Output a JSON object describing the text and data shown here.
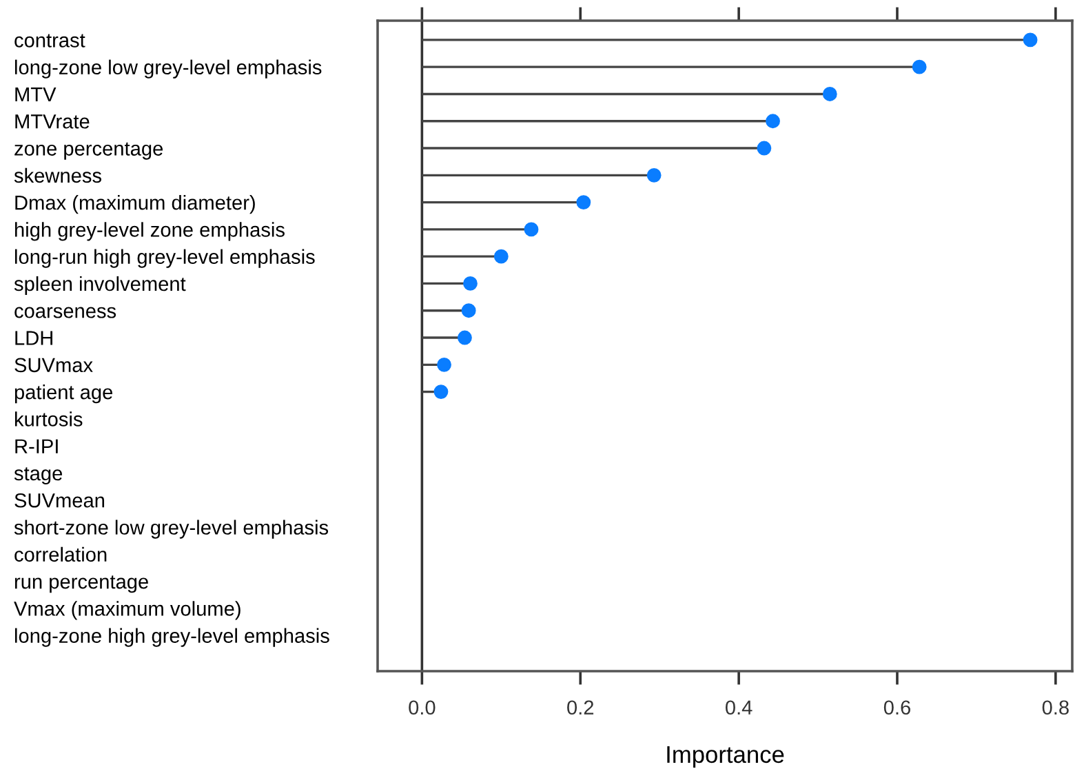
{
  "chart_data": {
    "type": "lollipop",
    "orientation": "horizontal",
    "xlabel": "Importance",
    "categories": [
      "contrast",
      "long-zone low grey-level emphasis",
      "MTV",
      "MTVrate",
      "zone percentage",
      "skewness",
      "Dmax (maximum diameter)",
      "high grey-level zone emphasis",
      "long-run high grey-level emphasis",
      "spleen involvement",
      "coarseness",
      "LDH",
      "SUVmax",
      "patient age",
      "kurtosis",
      "R-IPI",
      "stage",
      "SUVmean",
      "short-zone low grey-level emphasis",
      "correlation",
      "run percentage",
      "Vmax (maximum volume)",
      "long-zone high grey-level emphasis"
    ],
    "series": [
      {
        "color": "#0a7dff",
        "values": [
          0.768,
          0.628,
          0.515,
          0.443,
          0.432,
          0.293,
          0.204,
          0.138,
          0.1,
          0.061,
          0.059,
          0.054,
          0.028,
          0.024,
          null,
          null,
          null,
          null,
          null,
          null,
          null,
          null,
          null
        ]
      }
    ],
    "xlim": [
      -0.056,
      0.821
    ],
    "xticks": [
      {
        "value": 0,
        "label": "0.0"
      },
      {
        "value": 0.2,
        "label": "0.2"
      },
      {
        "value": 0.4,
        "label": "0.4"
      },
      {
        "value": 0.6,
        "label": "0.6"
      },
      {
        "value": 0.8,
        "label": "0.8"
      }
    ],
    "ref_lines": [
      {
        "axis": "x",
        "value": 0,
        "color": "#333333"
      }
    ],
    "marker": "circle"
  }
}
